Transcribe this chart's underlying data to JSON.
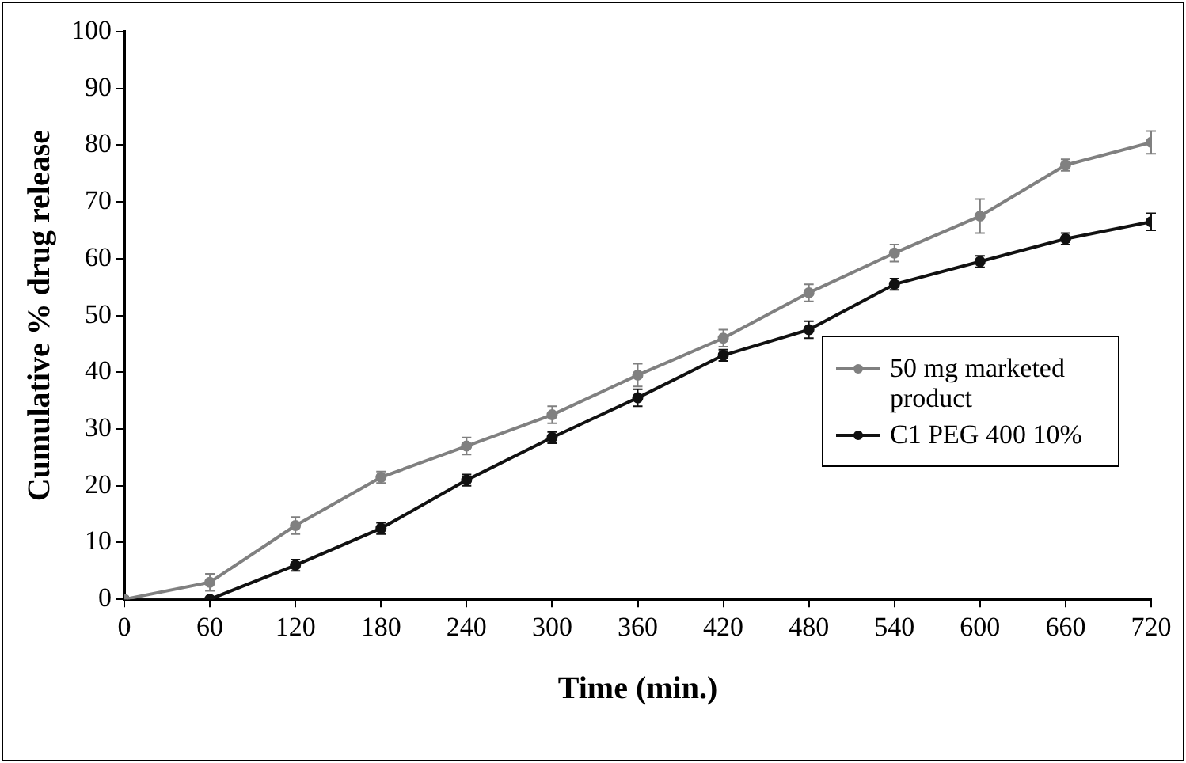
{
  "chart_data": {
    "type": "line",
    "xlabel": "Time (min.)",
    "ylabel": "Cumulative % drug release",
    "x": [
      0,
      60,
      120,
      180,
      240,
      300,
      360,
      420,
      480,
      540,
      600,
      660,
      720
    ],
    "series": [
      {
        "name": "50 mg marketed product",
        "color": "#808080",
        "values": [
          0,
          3,
          13,
          21.5,
          27,
          32.5,
          39.5,
          46,
          54,
          61,
          67.5,
          76.5,
          80.5
        ],
        "errors": [
          null,
          1.5,
          1.5,
          1,
          1.5,
          1.5,
          2,
          1.5,
          1.5,
          1.5,
          3,
          1,
          2
        ]
      },
      {
        "name": "C1 PEG 400 10%",
        "color": "#111111",
        "values": [
          0,
          0,
          6,
          12.5,
          21,
          28.5,
          35.5,
          43,
          47.5,
          55.5,
          59.5,
          63.5,
          66.5
        ],
        "errors": [
          null,
          null,
          1,
          1,
          1,
          1,
          1.5,
          1,
          1.5,
          1,
          1,
          1,
          1.5
        ]
      }
    ],
    "xlim": [
      0,
      720
    ],
    "xticks": [
      0,
      60,
      120,
      180,
      240,
      300,
      360,
      420,
      480,
      540,
      600,
      660,
      720
    ],
    "ylim": [
      0,
      100
    ],
    "yticks": [
      0,
      10,
      20,
      30,
      40,
      50,
      60,
      70,
      80,
      90,
      100
    ],
    "grid": false,
    "legend": "right",
    "marker": "circle",
    "line_style": "solid"
  }
}
